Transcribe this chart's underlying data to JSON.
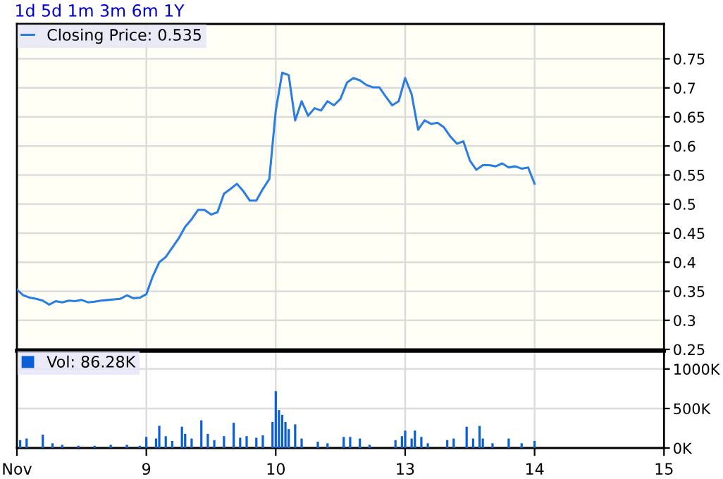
{
  "chart_data": [
    {
      "type": "line",
      "annotations": [
        "1d 5d 1m 3m 6m 1Y"
      ],
      "legend": "top left",
      "grid": true,
      "tick_labels": "y",
      "categories": [
        null,
        null,
        null,
        null,
        null,
        null,
        null,
        null,
        null,
        null,
        null,
        null,
        null,
        null,
        null,
        null,
        null,
        null,
        null,
        null,
        null,
        null,
        null,
        null,
        null,
        null,
        null,
        null,
        null,
        null,
        null,
        null,
        null,
        null,
        null,
        null,
        null,
        null,
        null,
        null,
        null,
        null,
        null,
        null,
        null,
        null,
        null,
        null,
        null,
        null,
        null,
        null,
        null,
        null,
        null,
        null,
        null,
        null,
        null,
        null,
        null,
        null,
        null,
        null,
        null,
        null,
        null,
        null,
        null,
        null,
        null,
        null,
        null,
        null,
        null,
        null,
        null,
        null,
        null,
        null,
        null,
        null,
        null,
        null,
        null,
        null,
        null,
        null,
        null,
        null,
        null,
        null,
        null,
        null,
        null,
        null,
        null,
        null,
        null,
        null,
        null
      ],
      "ylim": [
        0.25,
        0.81
      ],
      "yticks": [
        0.25,
        0.3,
        0.35,
        0.4,
        0.45,
        0.5,
        0.55,
        0.6,
        0.65,
        0.7,
        0.75
      ],
      "series": [
        {
          "name": "Closing Price: 0.535",
          "color": "#2a7de1",
          "values": [
            0.353,
            0.343,
            0.339,
            0.337,
            0.334,
            0.327,
            0.333,
            0.331,
            0.334,
            0.333,
            0.335,
            0.331,
            0.332,
            0.334,
            0.335,
            0.336,
            0.337,
            0.343,
            0.338,
            0.339,
            0.345,
            0.376,
            0.4,
            0.409,
            0.425,
            0.441,
            0.461,
            0.474,
            0.49,
            0.49,
            0.482,
            0.486,
            0.518,
            0.526,
            0.535,
            0.522,
            0.506,
            0.506,
            0.526,
            0.543,
            0.661,
            0.726,
            0.722,
            0.644,
            0.677,
            0.652,
            0.665,
            0.661,
            0.677,
            0.67,
            0.681,
            0.709,
            0.717,
            0.713,
            0.705,
            0.701,
            0.701,
            0.685,
            0.67,
            0.677,
            0.717,
            0.689,
            0.628,
            0.644,
            0.638,
            0.64,
            0.632,
            0.616,
            0.604,
            0.608,
            0.575,
            0.559,
            0.567,
            0.567,
            0.565,
            0.57,
            0.563,
            0.565,
            0.561,
            0.563,
            0.535,
            null,
            null,
            null,
            null,
            null,
            null,
            null,
            null,
            null,
            null,
            null,
            null,
            null,
            null,
            null,
            null,
            null,
            null,
            null,
            null
          ]
        }
      ]
    },
    {
      "type": "bar",
      "legend": "top left",
      "grid": true,
      "categories": [
        "Nov",
        null,
        null,
        null,
        null,
        null,
        null,
        null,
        null,
        null,
        null,
        null,
        null,
        null,
        null,
        null,
        null,
        null,
        null,
        null,
        null,
        null,
        null,
        null,
        null,
        null,
        null,
        null,
        null,
        null,
        null,
        null,
        null,
        null,
        null,
        null,
        null,
        null,
        null,
        null,
        "9",
        null,
        null,
        null,
        null,
        null,
        null,
        null,
        null,
        null,
        null,
        null,
        null,
        null,
        null,
        null,
        null,
        null,
        null,
        null,
        null,
        null,
        null,
        null,
        null,
        null,
        null,
        null,
        null,
        null,
        null,
        null,
        null,
        null,
        null,
        null,
        null,
        null,
        null,
        null,
        "10",
        null,
        null,
        null,
        null,
        null,
        null,
        null,
        null,
        null,
        null,
        null,
        null,
        null,
        null,
        null,
        null,
        null,
        null,
        null,
        null,
        null,
        null,
        null,
        null,
        null,
        null,
        null,
        null,
        null,
        null,
        null,
        null,
        null,
        null,
        null,
        null,
        null,
        null,
        null,
        "13",
        null,
        null,
        null,
        null,
        null,
        null,
        null,
        null,
        null,
        null,
        null,
        null,
        null,
        null,
        null,
        null,
        null,
        null,
        null,
        null,
        null,
        null,
        null,
        null,
        null,
        null,
        null,
        null,
        null,
        null,
        null,
        null,
        null,
        null,
        null,
        null,
        null,
        null,
        null,
        "14",
        null,
        null,
        null,
        null,
        null,
        null,
        null,
        null,
        null,
        null,
        null,
        null,
        null,
        null,
        null,
        null,
        null,
        null,
        null,
        null,
        null,
        null,
        null,
        null,
        null,
        null,
        null,
        null,
        null,
        null,
        null,
        null,
        null,
        null,
        null,
        null,
        null,
        null,
        null,
        "15"
      ],
      "ylim": [
        0,
        1230
      ],
      "yticks": [
        {
          "value": 0,
          "label": "0K"
        },
        {
          "value": 500,
          "label": "500K"
        },
        {
          "value": 1000,
          "label": "1000K"
        }
      ],
      "series": [
        {
          "name": "Vol: 86.28K",
          "color": "#0a5fd8",
          "values": [
            null,
            100,
            null,
            120,
            null,
            null,
            null,
            null,
            170,
            null,
            null,
            60,
            null,
            null,
            40,
            null,
            null,
            null,
            null,
            30,
            null,
            null,
            null,
            null,
            30,
            null,
            null,
            null,
            null,
            40,
            null,
            null,
            null,
            null,
            40,
            null,
            null,
            null,
            30,
            null,
            140,
            null,
            null,
            120,
            280,
            null,
            150,
            null,
            90,
            null,
            null,
            270,
            180,
            null,
            120,
            null,
            null,
            350,
            null,
            180,
            null,
            100,
            null,
            null,
            150,
            null,
            null,
            320,
            null,
            130,
            null,
            150,
            null,
            null,
            130,
            null,
            160,
            null,
            null,
            330,
            720,
            480,
            420,
            330,
            240,
            null,
            300,
            null,
            120,
            null,
            null,
            null,
            null,
            80,
            null,
            null,
            60,
            null,
            null,
            null,
            null,
            140,
            null,
            140,
            null,
            null,
            120,
            null,
            null,
            40,
            null,
            null,
            null,
            null,
            null,
            null,
            null,
            100,
            null,
            150,
            220,
            null,
            120,
            220,
            null,
            140,
            null,
            60,
            null,
            null,
            null,
            null,
            null,
            100,
            null,
            120,
            null,
            null,
            null,
            270,
            null,
            120,
            null,
            280,
            120,
            null,
            null,
            60,
            null,
            null,
            null,
            null,
            120,
            null,
            null,
            null,
            60,
            null,
            null,
            null,
            90,
            null,
            null,
            null,
            null,
            null,
            null,
            null,
            null,
            null,
            null,
            null,
            null,
            null,
            null,
            null,
            null,
            null,
            null,
            null,
            null,
            null,
            null,
            null,
            null,
            null,
            null,
            null,
            null,
            null,
            null,
            null,
            null,
            null,
            null,
            null,
            null,
            null,
            null,
            null,
            null
          ]
        }
      ]
    }
  ]
}
